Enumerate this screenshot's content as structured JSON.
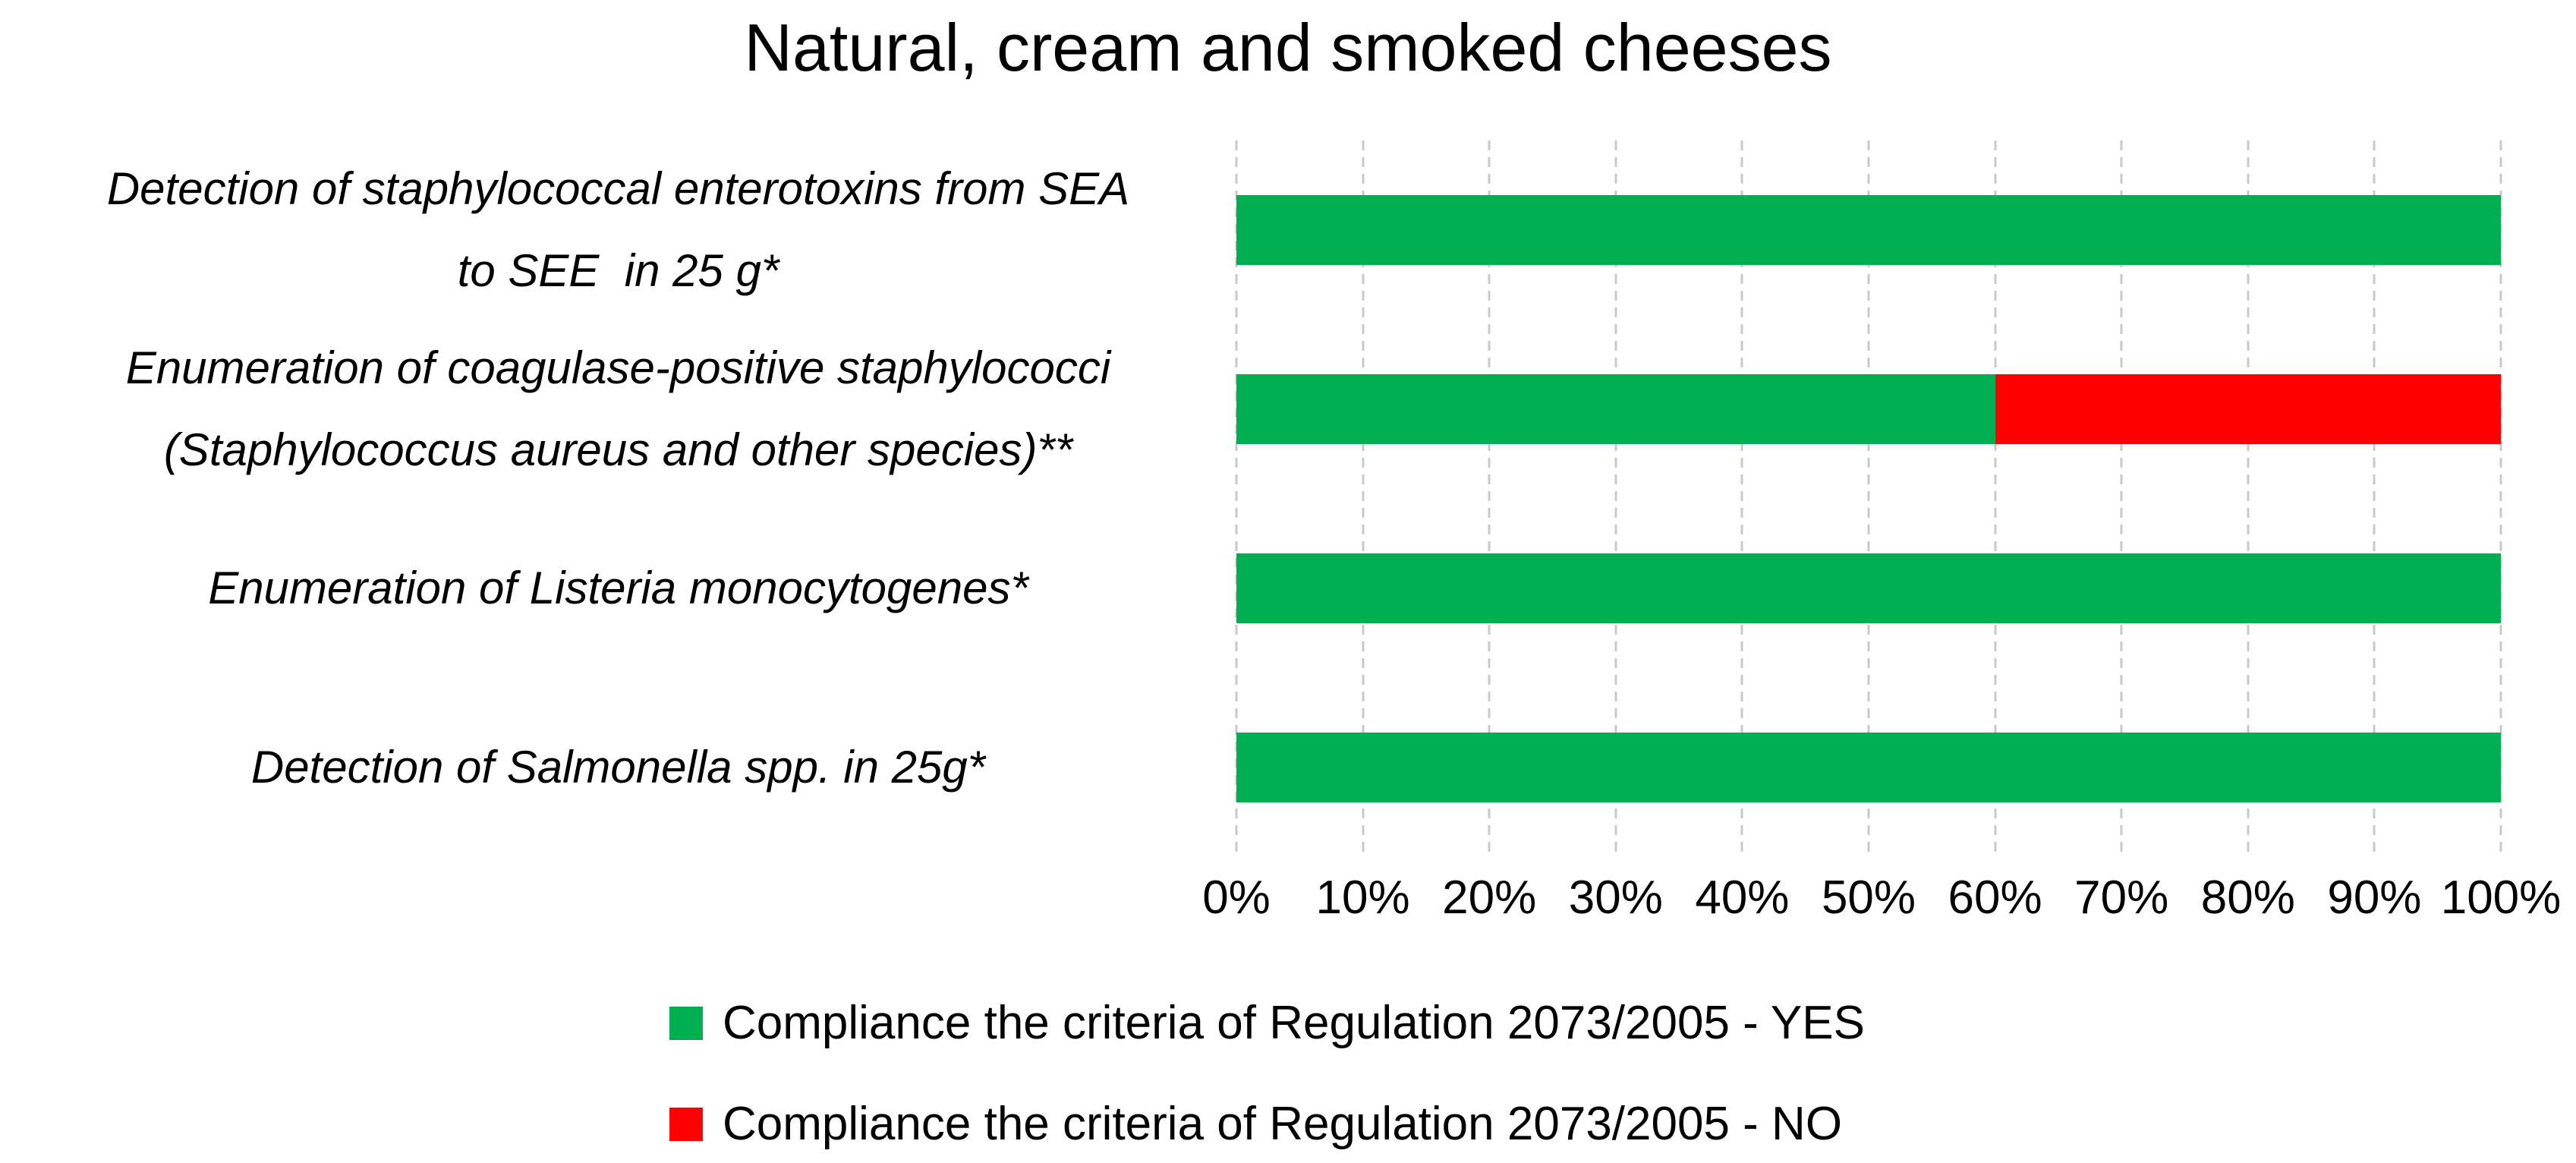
{
  "chart_data": {
    "type": "bar",
    "orientation": "horizontal",
    "stacked": true,
    "title": "Natural, cream and smoked cheeses",
    "categories": [
      {
        "label": "Detection of staphylococcal enterotoxins from SEA to SEE  in 25 g*",
        "lines": [
          "Detection of staphylococcal enterotoxins from SEA",
          "to SEE  in 25 g*"
        ]
      },
      {
        "label": "Enumeration of coagulase-positive staphylococci (Staphylococcus aureus and other species)**",
        "lines": [
          "Enumeration of coagulase-positive staphylococci",
          "(Staphylococcus aureus and other species)**"
        ]
      },
      {
        "label": "Enumeration of Listeria monocytogenes*",
        "lines": [
          "Enumeration of Listeria monocytogenes*"
        ]
      },
      {
        "label": "Detection of Salmonella spp. in 25g*",
        "lines": [
          "Detection of Salmonella spp. in 25g*"
        ]
      }
    ],
    "series": [
      {
        "key": "yes",
        "name": "Compliance the criteria of Regulation 2073/2005 - YES",
        "color": "#00B050",
        "values": [
          100,
          60,
          100,
          100
        ]
      },
      {
        "key": "no",
        "name": "Compliance the criteria of Regulation 2073/2005 - NO",
        "color": "#FF0000",
        "values": [
          0,
          40,
          0,
          0
        ]
      }
    ],
    "x_axis": {
      "min": 0,
      "max": 100,
      "ticks": [
        "0%",
        "10%",
        "20%",
        "30%",
        "40%",
        "50%",
        "60%",
        "70%",
        "80%",
        "90%",
        "100%"
      ]
    },
    "grid": "vertical-dashed",
    "legend_position": "bottom",
    "colors": {
      "yes": "#00B050",
      "no": "#FF0000",
      "gridline": "#C9C9C9",
      "text": "#000000",
      "background": "#FFFFFF"
    }
  }
}
